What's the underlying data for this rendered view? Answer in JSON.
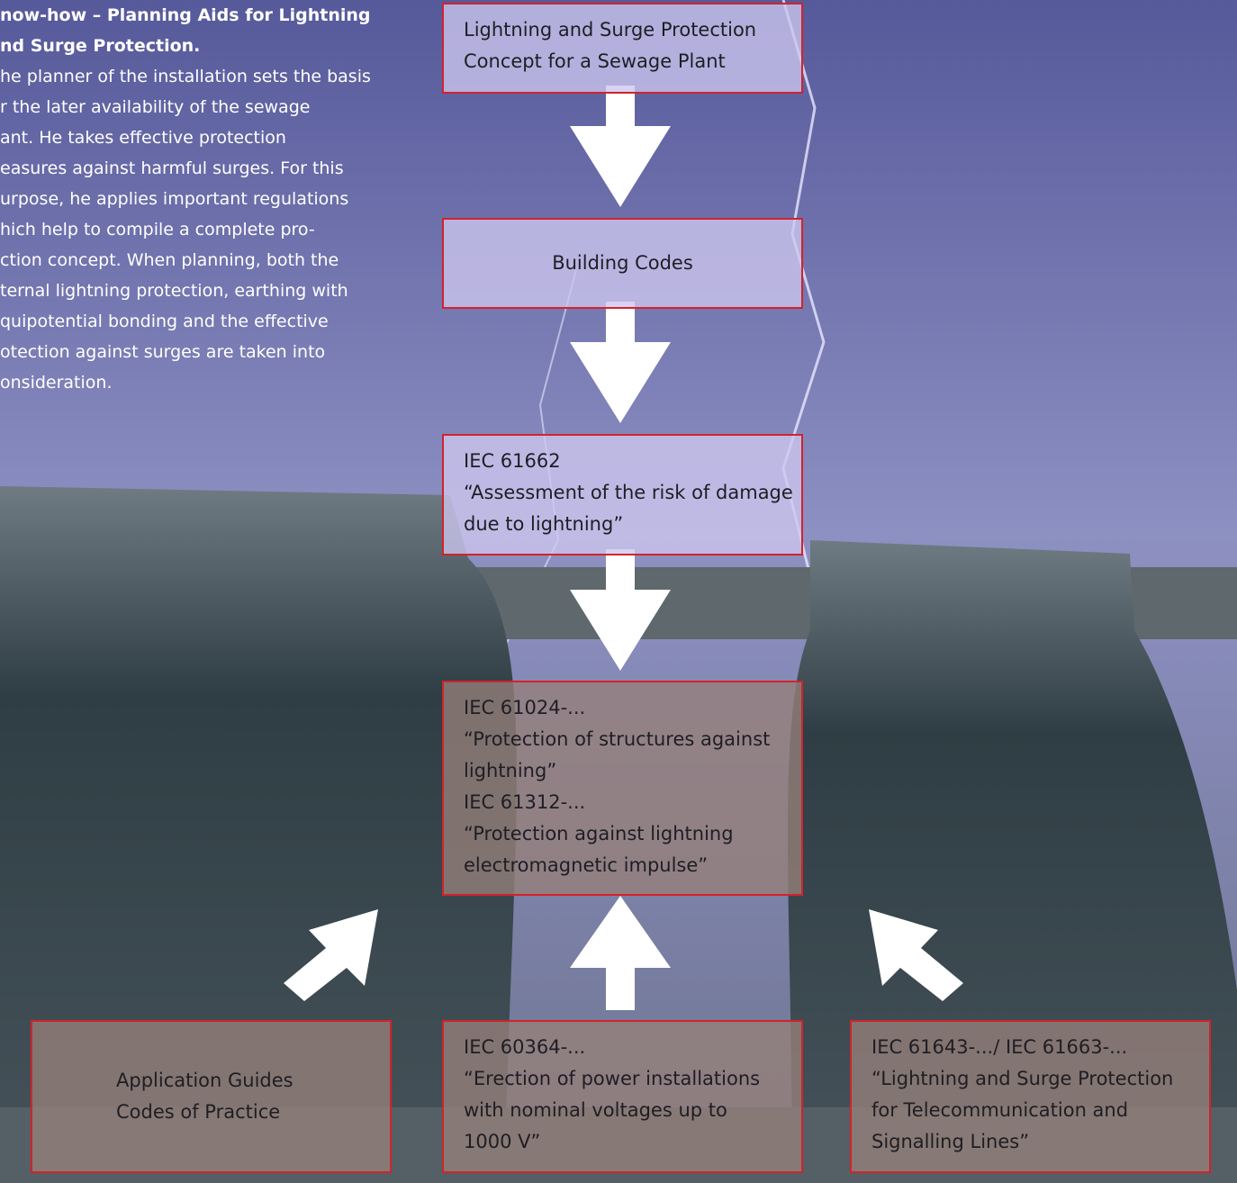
{
  "header": {
    "title_lines": [
      "now-how – Planning Aids for Lightning",
      "nd Surge Protection."
    ],
    "body_lines": [
      "he planner of the installation sets the basis",
      "r the later availability of the sewage",
      "ant. He takes effective protection",
      "easures against harmful surges. For this",
      "urpose, he applies important regulations",
      "hich help to compile a complete pro-",
      "ction concept. When planning, both the",
      "ternal lightning protection, earthing with",
      "quipotential bonding and the effective",
      "otection against surges are taken into",
      "onsideration."
    ]
  },
  "nodes": [
    {
      "lines": [
        "Lightning and Surge Protection",
        "Concept for a Sewage Plant"
      ]
    },
    {
      "lines": [
        "Building Codes"
      ]
    },
    {
      "lines": [
        "IEC 61662",
        "“Assessment of the risk of damage",
        "due to lightning”"
      ]
    },
    {
      "lines": [
        "IEC 61024-...",
        "“Protection of structures against",
        "lightning”",
        "IEC 61312-...",
        "“Protection against lightning",
        "electromagnetic impulse”"
      ]
    },
    {
      "lines": [
        "Application Guides",
        "Codes of Practice"
      ]
    },
    {
      "lines": [
        "IEC 60364-...",
        "“Erection of power installations",
        "with nominal voltages up to",
        "1000 V”"
      ]
    },
    {
      "lines": [
        "IEC 61643-.../ IEC 61663-...",
        "“Lightning and Surge Protection",
        "for Telecommunication and",
        "Signalling Lines”"
      ]
    }
  ]
}
